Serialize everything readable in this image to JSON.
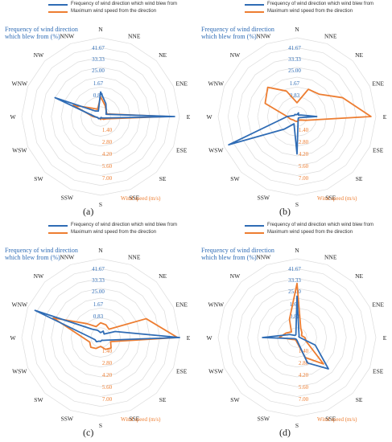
{
  "colors": {
    "frequency": "#2f6cb5",
    "speed": "#ed7d31",
    "grid": "#dcdcdc"
  },
  "directions": [
    "N",
    "NNE",
    "NE",
    "ENE",
    "E",
    "ESE",
    "SE",
    "SSE",
    "S",
    "SSW",
    "SW",
    "WSW",
    "W",
    "WNW",
    "NW",
    "NNW"
  ],
  "legend": {
    "frequency": "Frequency of wind direction which wind blew from",
    "speed": "Maximum wind speed from the direction"
  },
  "frequency_axis_label": "Frequency of wind direction which blew from (%)",
  "speed_axis_label": "Wind speed (m/s)",
  "frequency_ticks": [
    "41.67",
    "33.33",
    "25.00",
    "1.67",
    "0.83"
  ],
  "speed_ticks": [
    "1.40",
    "2.80",
    "4.20",
    "5.60",
    "7.00"
  ],
  "chart_data": [
    {
      "type": "radar",
      "caption": "(a)",
      "series": [
        {
          "name": "Frequency of wind direction which wind blew from",
          "values": [
            2.5,
            1.4,
            0.8,
            0.6,
            7.5,
            0.4,
            0.2,
            0.1,
            0.2,
            0.2,
            0.3,
            0.3,
            0.6,
            5.0,
            0.8,
            0.6
          ]
        },
        {
          "name": "Maximum wind speed from the direction",
          "values": [
            2.0,
            1.2,
            0.8,
            0.7,
            6.8,
            0.6,
            0.4,
            0.2,
            0.3,
            0.2,
            0.3,
            0.3,
            0.8,
            3.0,
            1.2,
            0.8
          ]
        }
      ]
    },
    {
      "type": "radar",
      "caption": "(b)",
      "series": [
        {
          "name": "Frequency of wind direction which wind blew from",
          "values": [
            0.2,
            0.4,
            0.2,
            0.4,
            2.0,
            0.3,
            0.2,
            0.3,
            3.8,
            0.8,
            1.8,
            7.5,
            1.0,
            0.3,
            0.3,
            0.2
          ]
        },
        {
          "name": "Maximum wind speed from the direction",
          "values": [
            1.4,
            3.0,
            3.2,
            5.0,
            7.5,
            1.0,
            0.5,
            0.4,
            0.5,
            0.5,
            0.5,
            0.7,
            1.0,
            3.5,
            4.2,
            2.8
          ]
        }
      ]
    },
    {
      "type": "radar",
      "caption": "(c)",
      "series": [
        {
          "name": "Frequency of wind direction which wind blew from",
          "values": [
            0.5,
            0.7,
            0.5,
            1.6,
            8.0,
            0.7,
            0.4,
            0.3,
            0.4,
            0.4,
            0.6,
            0.6,
            1.0,
            7.2,
            1.2,
            0.8
          ]
        },
        {
          "name": "Maximum wind speed from the direction",
          "values": [
            1.5,
            1.4,
            1.2,
            5.0,
            7.8,
            1.1,
            1.5,
            1.3,
            0.9,
            1.2,
            1.4,
            1.2,
            1.8,
            5.2,
            2.0,
            1.2
          ]
        }
      ]
    },
    {
      "type": "radar",
      "caption": "(d)",
      "series": [
        {
          "name": "Frequency of wind direction which wind blew from",
          "values": [
            4.2,
            0.5,
            0.3,
            0.2,
            0.3,
            2.0,
            4.5,
            2.8,
            0.3,
            0.2,
            0.2,
            0.3,
            3.5,
            0.8,
            0.3,
            0.3
          ]
        },
        {
          "name": "Maximum wind speed from the direction",
          "values": [
            5.5,
            1.0,
            0.7,
            0.5,
            0.8,
            1.0,
            3.8,
            2.2,
            0.5,
            0.3,
            0.3,
            0.5,
            1.8,
            1.2,
            0.8,
            2.0
          ]
        }
      ]
    }
  ]
}
